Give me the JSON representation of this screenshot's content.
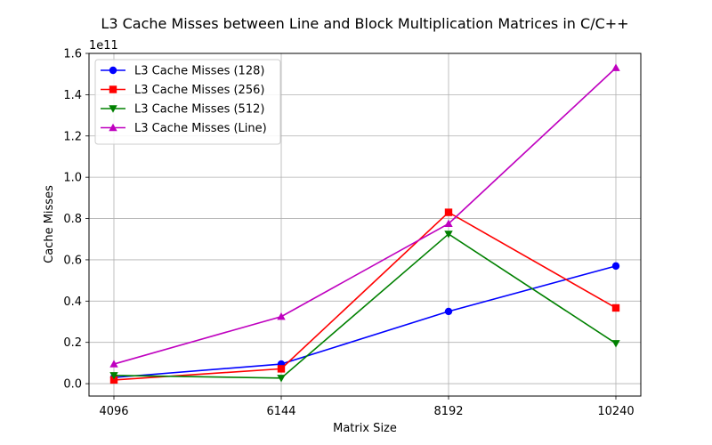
{
  "chart_data": {
    "type": "line",
    "title": "L3 Cache Misses between Line and Block Multiplication Matrices in C/C++",
    "xlabel": "Matrix Size",
    "ylabel": "Cache Misses",
    "y_scale_label": "1e11",
    "categories": [
      "4096",
      "6144",
      "8192",
      "10240"
    ],
    "ylim": [
      -0.06,
      1.6
    ],
    "y_ticks": [
      "0.0",
      "0.2",
      "0.4",
      "0.6",
      "0.8",
      "1.0",
      "1.2",
      "1.4",
      "1.6"
    ],
    "grid": true,
    "legend_position": "top-left",
    "series": [
      {
        "name": "L3 Cache Misses (128)",
        "color": "#0000ff",
        "marker": "circle",
        "values": [
          0.03,
          0.095,
          0.35,
          0.57
        ]
      },
      {
        "name": "L3 Cache Misses (256)",
        "color": "#ff0000",
        "marker": "square",
        "values": [
          0.018,
          0.072,
          0.83,
          0.367
        ]
      },
      {
        "name": "L3 Cache Misses (512)",
        "color": "#008000",
        "marker": "triangle-down",
        "values": [
          0.04,
          0.027,
          0.725,
          0.195
        ]
      },
      {
        "name": "L3 Cache Misses (Line)",
        "color": "#bf00bf",
        "marker": "triangle-up",
        "values": [
          0.095,
          0.325,
          0.775,
          1.53
        ]
      }
    ]
  }
}
